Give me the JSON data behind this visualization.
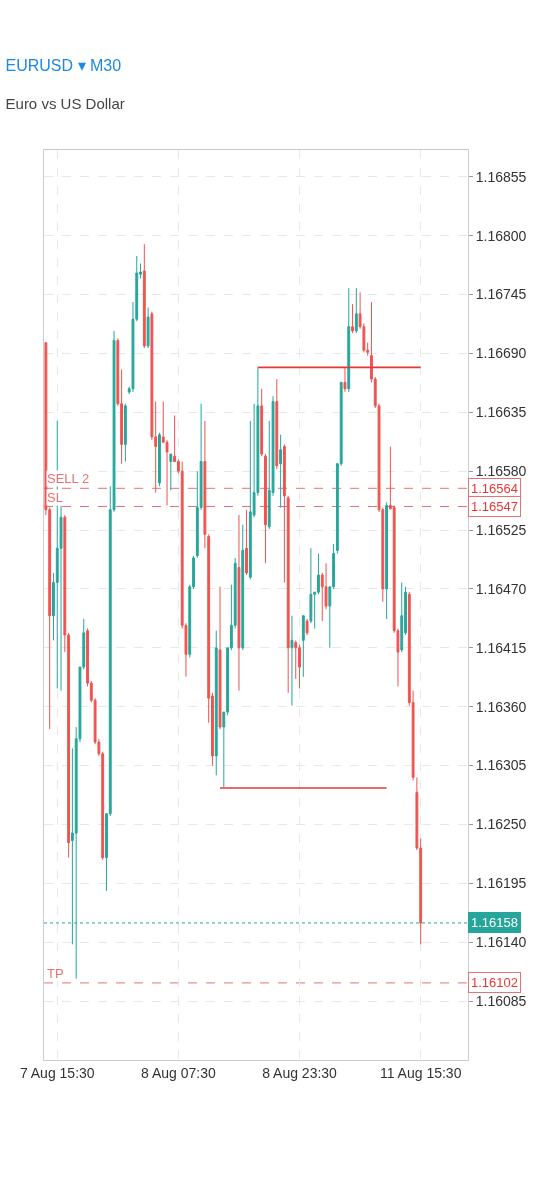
{
  "chart_data": {
    "type": "candlestick",
    "title": "EURUSD ▾ M30",
    "subtitle": "Euro vs US Dollar",
    "categories": [
      null,
      null,
      null,
      "7 Aug 15:30",
      null,
      null,
      null,
      null,
      null,
      null,
      null,
      null,
      null,
      null,
      null,
      null,
      null,
      null,
      null,
      null,
      null,
      null,
      null,
      null,
      null,
      null,
      null,
      null,
      null,
      null,
      null,
      null,
      null,
      null,
      null,
      "8 Aug 07:30",
      null,
      null,
      null,
      null,
      null,
      null,
      null,
      null,
      null,
      null,
      null,
      null,
      null,
      null,
      null,
      null,
      null,
      null,
      null,
      null,
      null,
      null,
      null,
      null,
      null,
      null,
      null,
      null,
      null,
      null,
      null,
      "8 Aug 23:30",
      null,
      null,
      null,
      null,
      null,
      null,
      null,
      null,
      null,
      null,
      null,
      null,
      null,
      null,
      null,
      null,
      null,
      null,
      null,
      null,
      null,
      null,
      null,
      null,
      null,
      null,
      null,
      null,
      null,
      null,
      null,
      "11 Aug 15:30"
    ],
    "ohlc": [
      [
        1.167,
        1.167,
        1.16539,
        1.16544
      ],
      [
        1.16544,
        1.16546,
        1.16339,
        1.16445
      ],
      [
        1.16445,
        1.16485,
        1.16422,
        1.16476
      ],
      [
        1.16476,
        1.16627,
        1.16377,
        1.16508
      ],
      [
        1.16508,
        1.16548,
        1.16375,
        1.16537
      ],
      [
        1.16537,
        1.16539,
        1.16411,
        1.16427
      ],
      [
        1.16427,
        1.16429,
        1.16219,
        1.16233
      ],
      [
        1.16235,
        1.16321,
        1.16138,
        1.16242
      ],
      [
        1.16242,
        1.16341,
        1.16106,
        1.1633
      ],
      [
        1.1633,
        1.16397,
        1.16327,
        1.16397
      ],
      [
        1.16397,
        1.16442,
        1.16395,
        1.16429
      ],
      [
        1.16431,
        1.16433,
        1.16379,
        1.16382
      ],
      [
        1.16382,
        1.16384,
        1.16364,
        1.16366
      ],
      [
        1.16366,
        1.16368,
        1.16325,
        1.16327
      ],
      [
        1.16327,
        1.1633,
        1.16314,
        1.16316
      ],
      [
        1.16316,
        1.16318,
        1.16217,
        1.16219
      ],
      [
        1.16219,
        1.1626,
        1.16188,
        1.1626
      ],
      [
        1.1626,
        1.16566,
        1.16258,
        1.16544
      ],
      [
        1.16544,
        1.16711,
        1.16542,
        1.16702
      ],
      [
        1.16702,
        1.16704,
        1.16641,
        1.16643
      ],
      [
        1.16643,
        1.16675,
        1.16587,
        1.16605
      ],
      [
        1.16605,
        1.16643,
        1.16589,
        1.16641
      ],
      [
        1.16654,
        1.16659,
        1.16652,
        1.16657
      ],
      [
        1.16657,
        1.16738,
        1.16654,
        1.16722
      ],
      [
        1.16722,
        1.16781,
        1.1672,
        1.16765
      ],
      [
        1.16764,
        1.16774,
        1.1676,
        1.16766
      ],
      [
        1.16767,
        1.16792,
        1.16695,
        1.16697
      ],
      [
        1.16697,
        1.16733,
        1.16695,
        1.16724
      ],
      [
        1.16727,
        1.16729,
        1.16609,
        1.16612
      ],
      [
        1.16612,
        1.16645,
        1.1656,
        1.16603
      ],
      [
        1.16569,
        1.16616,
        1.16566,
        1.16614
      ],
      [
        1.16612,
        1.16645,
        1.16607,
        1.16607
      ],
      [
        1.16607,
        1.16609,
        1.16548,
        1.16598
      ],
      [
        1.16589,
        1.16596,
        1.16562,
        1.16596
      ],
      [
        1.16594,
        1.16632,
        1.16589,
        1.16589
      ],
      [
        1.16589,
        1.16591,
        1.16578,
        1.1658
      ],
      [
        1.1658,
        1.16589,
        1.16433,
        1.16436
      ],
      [
        1.16436,
        1.16438,
        1.16388,
        1.16409
      ],
      [
        1.16409,
        1.16474,
        1.16406,
        1.16472
      ],
      [
        1.16472,
        1.16501,
        1.1647,
        1.16499
      ],
      [
        1.16501,
        1.1658,
        1.16499,
        1.16546
      ],
      [
        1.16546,
        1.16643,
        1.16544,
        1.16589
      ],
      [
        1.16589,
        1.16627,
        1.16508,
        1.16521
      ],
      [
        1.16519,
        1.16521,
        1.16345,
        1.16368
      ],
      [
        1.1637,
        1.16373,
        1.16305,
        1.16314
      ],
      [
        1.16314,
        1.16431,
        1.16296,
        1.16415
      ],
      [
        1.16413,
        1.16472,
        1.16339,
        1.16341
      ],
      [
        1.16341,
        1.16355,
        1.16285,
        1.16355
      ],
      [
        1.16355,
        1.16415,
        1.16352,
        1.16415
      ],
      [
        1.16415,
        1.16474,
        1.16413,
        1.16436
      ],
      [
        1.16436,
        1.16499,
        1.16433,
        1.16494
      ],
      [
        1.1649,
        1.16539,
        1.16375,
        1.16415
      ],
      [
        1.16415,
        1.1653,
        1.16413,
        1.16506
      ],
      [
        1.16508,
        1.16544,
        1.16483,
        1.16485
      ],
      [
        1.16481,
        1.16627,
        1.16479,
        1.16542
      ],
      [
        1.16539,
        1.16643,
        1.16537,
        1.1656
      ],
      [
        1.1656,
        1.16677,
        1.16557,
        1.16641
      ],
      [
        1.16641,
        1.16657,
        1.16594,
        1.16596
      ],
      [
        1.16594,
        1.16596,
        1.16494,
        1.1653
      ],
      [
        1.16528,
        1.16627,
        1.16526,
        1.16562
      ],
      [
        1.1656,
        1.1665,
        1.16557,
        1.16645
      ],
      [
        1.16645,
        1.16666,
        1.16582,
        1.16585
      ],
      [
        1.16587,
        1.16614,
        1.16546,
        1.166
      ],
      [
        1.16603,
        1.16605,
        1.16476,
        1.16557
      ],
      [
        1.16555,
        1.16557,
        1.16373,
        1.16415
      ],
      [
        1.16415,
        1.16445,
        1.16361,
        1.16422
      ],
      [
        1.1642,
        1.16422,
        1.16386,
        1.16415
      ],
      [
        1.16415,
        1.16418,
        1.16377,
        1.16397
      ],
      [
        1.16422,
        1.16445,
        1.16388,
        1.16445
      ],
      [
        1.1644,
        1.16442,
        1.16427,
        1.16429
      ],
      [
        1.1644,
        1.16508,
        1.16438,
        1.16465
      ],
      [
        1.16465,
        1.16467,
        1.16433,
        1.16467
      ],
      [
        1.16467,
        1.16503,
        1.16465,
        1.16483
      ],
      [
        1.16483,
        1.16485,
        1.1644,
        1.16472
      ],
      [
        1.16472,
        1.16494,
        1.16451,
        1.16454
      ],
      [
        1.16454,
        1.16472,
        1.16415,
        1.16472
      ],
      [
        1.16472,
        1.16512,
        1.1647,
        1.16503
      ],
      [
        1.16506,
        1.16587,
        1.16503,
        1.16587
      ],
      [
        1.16587,
        1.16663,
        1.16585,
        1.16663
      ],
      [
        1.16663,
        1.16677,
        1.16654,
        1.16657
      ],
      [
        1.16657,
        1.16751,
        1.16654,
        1.16715
      ],
      [
        1.16715,
        1.16736,
        1.16709,
        1.16711
      ],
      [
        1.16711,
        1.16751,
        1.16709,
        1.16727
      ],
      [
        1.16727,
        1.16747,
        1.16713,
        1.16715
      ],
      [
        1.16715,
        1.16718,
        1.16691,
        1.16693
      ],
      [
        1.16693,
        1.167,
        1.16688,
        1.16691
      ],
      [
        1.16688,
        1.16738,
        1.16663,
        1.16666
      ],
      [
        1.16666,
        1.16668,
        1.16639,
        1.16641
      ],
      [
        1.16641,
        1.16643,
        1.16542,
        1.16544
      ],
      [
        1.16544,
        1.16546,
        1.16458,
        1.1647
      ],
      [
        1.1647,
        1.16551,
        1.16442,
        1.16548
      ],
      [
        1.16548,
        1.16603,
        1.16544,
        1.16545
      ],
      [
        1.16546,
        1.16548,
        1.16429,
        1.16431
      ],
      [
        1.16431,
        1.16433,
        1.16379,
        1.16411
      ],
      [
        1.16413,
        1.16476,
        1.16411,
        1.16445
      ],
      [
        1.16429,
        1.16472,
        1.16427,
        1.16467
      ],
      [
        1.16465,
        1.16467,
        1.16361,
        1.16364
      ],
      [
        1.16364,
        1.16375,
        1.16291,
        1.16294
      ],
      [
        1.1628,
        1.16294,
        1.16226,
        1.16228
      ],
      [
        1.16228,
        1.16237,
        1.16138,
        1.16158
      ]
    ],
    "series": [
      {
        "type": "line",
        "color": "#e53935",
        "values": [
          null,
          null,
          null,
          null,
          null,
          null,
          null,
          null,
          null,
          null,
          null,
          null,
          null,
          null,
          null,
          null,
          null,
          null,
          null,
          null,
          null,
          null,
          null,
          null,
          null,
          null,
          null,
          null,
          null,
          null,
          null,
          null,
          null,
          null,
          null,
          null,
          null,
          null,
          null,
          null,
          null,
          null,
          null,
          null,
          null,
          null,
          null,
          null,
          null,
          null,
          null,
          null,
          null,
          null,
          null,
          null,
          1.16677,
          null,
          null,
          null,
          null,
          null,
          null,
          null,
          null,
          null,
          null,
          null,
          null,
          null,
          null,
          null,
          null,
          null,
          null,
          null,
          null,
          null,
          null,
          null,
          null,
          null,
          null,
          null,
          null,
          null,
          null,
          null,
          null,
          null,
          null,
          null,
          null,
          null,
          null,
          null,
          null,
          null,
          null,
          1.16677
        ]
      },
      {
        "type": "line",
        "color": "#e53935",
        "values": [
          null,
          null,
          null,
          null,
          null,
          null,
          null,
          null,
          null,
          null,
          null,
          null,
          null,
          null,
          null,
          null,
          null,
          null,
          null,
          null,
          null,
          null,
          null,
          null,
          null,
          null,
          null,
          null,
          null,
          null,
          null,
          null,
          null,
          null,
          null,
          null,
          null,
          null,
          null,
          null,
          null,
          null,
          null,
          null,
          null,
          null,
          1.16284,
          null,
          null,
          null,
          null,
          null,
          null,
          null,
          null,
          null,
          null,
          null,
          null,
          null,
          null,
          null,
          null,
          null,
          null,
          null,
          null,
          null,
          null,
          null,
          null,
          null,
          null,
          null,
          null,
          null,
          null,
          null,
          null,
          null,
          null,
          null,
          null,
          null,
          null,
          null,
          null,
          null,
          null,
          null,
          1.16284,
          null,
          null,
          null,
          null,
          null,
          null,
          null,
          null,
          null
        ]
      }
    ],
    "ref_lines": [
      {
        "axis": "y",
        "value": 1.16564,
        "label": "SELL 2",
        "color": "#e57373",
        "line_style": "dashed"
      },
      {
        "axis": "y",
        "value": 1.16547,
        "label": "SL",
        "color": "#e57373",
        "line_style": "dashed"
      },
      {
        "axis": "y",
        "value": 1.16102,
        "label": "TP",
        "color": "#e57373",
        "line_style": "dashed"
      },
      {
        "axis": "y",
        "value": 1.16158,
        "color": "#26a69a",
        "line_style": "dotted"
      }
    ],
    "annotations": [
      "1.16564",
      "1.16547",
      "1.16102",
      "1.16158"
    ],
    "ylim": [
      1.1603,
      1.1688
    ],
    "yticks": [
      1.16855,
      {
        "value": 1.168,
        "label": "1.16800"
      },
      1.16745,
      {
        "value": 1.1669,
        "label": "1.16690"
      },
      1.16635,
      {
        "value": 1.1658,
        "label": "1.16580"
      },
      1.16525,
      {
        "value": 1.1647,
        "label": "1.16470"
      },
      1.16415,
      {
        "value": 1.1636,
        "label": "1.16360"
      },
      1.16305,
      {
        "value": 1.1625,
        "label": "1.16250"
      },
      1.16195,
      {
        "value": 1.1614,
        "label": "1.16140"
      },
      1.16085
    ],
    "grid": true
  }
}
